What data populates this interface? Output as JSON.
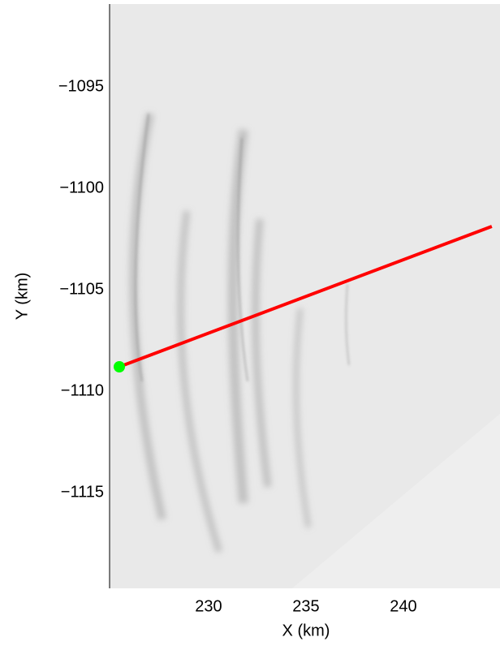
{
  "chart_data": {
    "type": "line",
    "xlabel": "X (km)",
    "ylabel": "Y (km)",
    "xlim": [
      224.92,
      244.96
    ],
    "ylim": [
      -1119.72,
      -1090.92
    ],
    "xticks": [
      230,
      235,
      240
    ],
    "yticks": [
      {
        "value": -1095,
        "label": "−1095"
      },
      {
        "value": -1100,
        "label": "−1100"
      },
      {
        "value": -1105,
        "label": "−1105"
      },
      {
        "value": -1110,
        "label": "−1110"
      },
      {
        "value": -1115,
        "label": "−1115"
      }
    ],
    "grid": false,
    "series": [
      {
        "color": "#ff0000",
        "x": [
          225.42,
          244.54
        ],
        "values": [
          -1108.8,
          -1101.88
        ]
      },
      {
        "color": "#00ff00",
        "x": [
          225.42
        ],
        "values": [
          -1108.8
        ],
        "marker": true
      }
    ]
  }
}
